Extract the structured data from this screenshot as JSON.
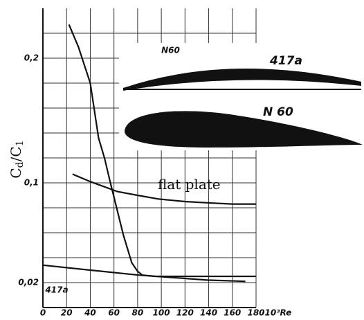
{
  "chart_data": {
    "type": "line",
    "ylabel_parts": [
      "C",
      "d",
      "/C",
      "1"
    ],
    "xlabel": "·10³Re",
    "xlim": [
      0,
      180
    ],
    "xticks": [
      0,
      20,
      40,
      60,
      80,
      100,
      120,
      140,
      160,
      180
    ],
    "ylim": [
      0,
      0.24
    ],
    "yticks": [
      {
        "value": 0.02,
        "label": "0,02"
      },
      {
        "value": 0.1,
        "label": "0,1"
      },
      {
        "value": 0.2,
        "label": "0,2"
      }
    ],
    "y_minor_ticks": [
      0.04,
      0.06,
      0.08,
      0.12,
      0.14,
      0.16,
      0.18,
      0.22
    ],
    "grid": true,
    "series": [
      {
        "name": "N60",
        "color": "#111111",
        "x": [
          22,
          30,
          40,
          47,
          52,
          57,
          62,
          68,
          75,
          80,
          84,
          95,
          120,
          150,
          180
        ],
        "values": [
          0.227,
          0.209,
          0.18,
          0.136,
          0.12,
          0.1,
          0.081,
          0.058,
          0.036,
          0.029,
          0.026,
          0.025,
          0.025,
          0.025,
          0.025
        ]
      },
      {
        "name": "flat plate",
        "color": "#111111",
        "x": [
          25,
          40,
          63,
          80,
          98,
          120,
          139,
          160,
          180
        ],
        "values": [
          0.107,
          0.101,
          0.093,
          0.09,
          0.087,
          0.085,
          0.084,
          0.083,
          0.083
        ]
      },
      {
        "name": "417a",
        "color": "#111111",
        "x": [
          0,
          40,
          81,
          110,
          139,
          171
        ],
        "values": [
          0.034,
          0.03,
          0.026,
          0.024,
          0.022,
          0.021
        ]
      }
    ],
    "figure_labels": [
      "417a",
      "N 60"
    ]
  }
}
